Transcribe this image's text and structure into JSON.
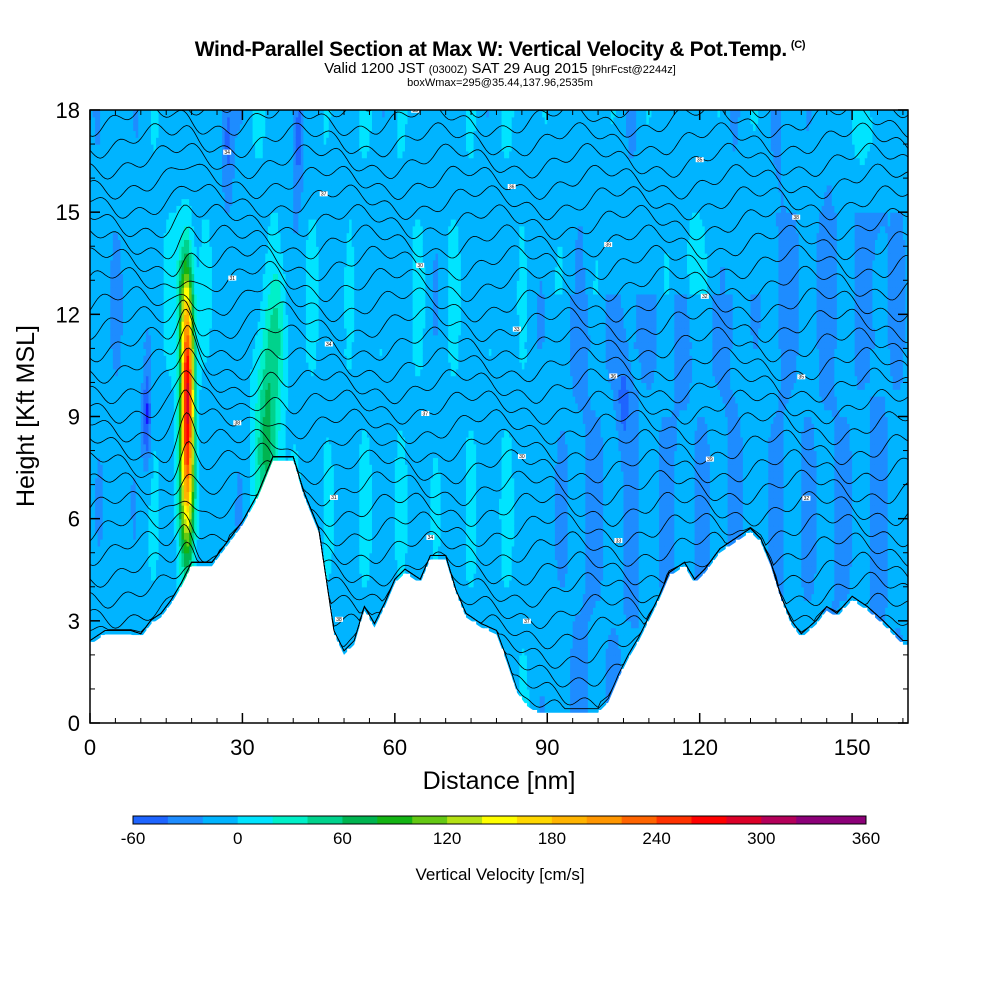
{
  "header": {
    "title": "Wind-Parallel Section at Max W: Vertical Velocity & Pot.Temp.",
    "title_mark": "(C)",
    "valid_prefix": "Valid 1200 JST",
    "valid_utc": "(0300Z)",
    "valid_date": "SAT 29 Aug 2015",
    "forecast_note": "[9hrFcst@2244z]",
    "box_note": "boxWmax=295@35.44,137.96,2535m"
  },
  "chart_data": {
    "type": "heatmap",
    "xlabel": "Distance [nm]",
    "ylabel": "Height [Kft MSL]",
    "xlim": [
      0,
      161
    ],
    "ylim": [
      0,
      18
    ],
    "x_ticks": [
      0,
      30,
      60,
      90,
      120,
      150
    ],
    "y_ticks": [
      0,
      3,
      6,
      9,
      12,
      15,
      18
    ],
    "colorbar": {
      "title": "Vertical Velocity [cm/s]",
      "min": -60,
      "max": 360,
      "step": 20,
      "tick_labels": [
        -60,
        0,
        60,
        120,
        180,
        240,
        300,
        360
      ],
      "colors": [
        "#1414ff",
        "#1e64ff",
        "#1e8cff",
        "#00b4ff",
        "#00e4ff",
        "#00f0c8",
        "#00d28c",
        "#00b450",
        "#14b414",
        "#64c814",
        "#b4e114",
        "#ffff00",
        "#ffd700",
        "#ffb400",
        "#ff9600",
        "#ff6400",
        "#ff3200",
        "#ff0000",
        "#dc0028",
        "#b4005a",
        "#8c0078"
      ]
    },
    "terrain_kft": [
      [
        0,
        2.3
      ],
      [
        3,
        2.6
      ],
      [
        8,
        2.6
      ],
      [
        10,
        2.5
      ],
      [
        12,
        2.9
      ],
      [
        14,
        3.1
      ],
      [
        16,
        3.5
      ],
      [
        18,
        4.0
      ],
      [
        20,
        4.6
      ],
      [
        24,
        4.6
      ],
      [
        27,
        5.2
      ],
      [
        30,
        5.8
      ],
      [
        33,
        6.6
      ],
      [
        36,
        7.7
      ],
      [
        40,
        7.7
      ],
      [
        42,
        6.7
      ],
      [
        45,
        5.6
      ],
      [
        47,
        3.6
      ],
      [
        48,
        2.6
      ],
      [
        50,
        2.0
      ],
      [
        52,
        2.3
      ],
      [
        54,
        3.3
      ],
      [
        56,
        2.8
      ],
      [
        58,
        3.4
      ],
      [
        60,
        4.1
      ],
      [
        62,
        4.4
      ],
      [
        65,
        4.1
      ],
      [
        67,
        4.8
      ],
      [
        70,
        4.8
      ],
      [
        72,
        3.8
      ],
      [
        74,
        3.1
      ],
      [
        77,
        2.8
      ],
      [
        80,
        2.6
      ],
      [
        82,
        1.8
      ],
      [
        84,
        0.9
      ],
      [
        86,
        0.5
      ],
      [
        88,
        0.3
      ],
      [
        100,
        0.3
      ],
      [
        102,
        0.6
      ],
      [
        104,
        1.3
      ],
      [
        106,
        1.9
      ],
      [
        108,
        2.4
      ],
      [
        110,
        3.0
      ],
      [
        112,
        3.6
      ],
      [
        114,
        4.3
      ],
      [
        117,
        4.6
      ],
      [
        119,
        4.1
      ],
      [
        121,
        4.4
      ],
      [
        124,
        5.0
      ],
      [
        127,
        5.3
      ],
      [
        130,
        5.6
      ],
      [
        132,
        5.3
      ],
      [
        134,
        4.6
      ],
      [
        136,
        3.6
      ],
      [
        138,
        2.9
      ],
      [
        140,
        2.5
      ],
      [
        143,
        2.9
      ],
      [
        145,
        3.3
      ],
      [
        147,
        3.1
      ],
      [
        150,
        3.6
      ],
      [
        153,
        3.3
      ],
      [
        156,
        2.9
      ],
      [
        158,
        2.6
      ],
      [
        160,
        2.3
      ],
      [
        161,
        2.3
      ]
    ],
    "vertical_velocity_features": [
      {
        "name": "primary updraft core",
        "x_nm": 19,
        "z_min_kft": 4.5,
        "z_max_kft": 13.5,
        "peak_cm_s": 295
      },
      {
        "name": "secondary updraft",
        "x_nm": 35,
        "z_min_kft": 6.8,
        "z_max_kft": 12.5,
        "peak_cm_s": 90
      },
      {
        "name": "downdraft",
        "x_nm": 11,
        "z_min_kft": 7.5,
        "z_max_kft": 10.5,
        "peak_cm_s": -45
      },
      {
        "name": "downdraft aloft",
        "x_nm": 27,
        "z_min_kft": 15.5,
        "z_max_kft": 18,
        "peak_cm_s": -40
      },
      {
        "name": "downdraft aloft",
        "x_nm": 41,
        "z_min_kft": 16,
        "z_max_kft": 18,
        "peak_cm_s": -40
      }
    ],
    "theta_contours": {
      "interval_kft": 0.6,
      "label_values": [
        "39",
        "38",
        "37",
        "36",
        "35",
        "34",
        "33",
        "32",
        "31",
        "30"
      ]
    }
  }
}
